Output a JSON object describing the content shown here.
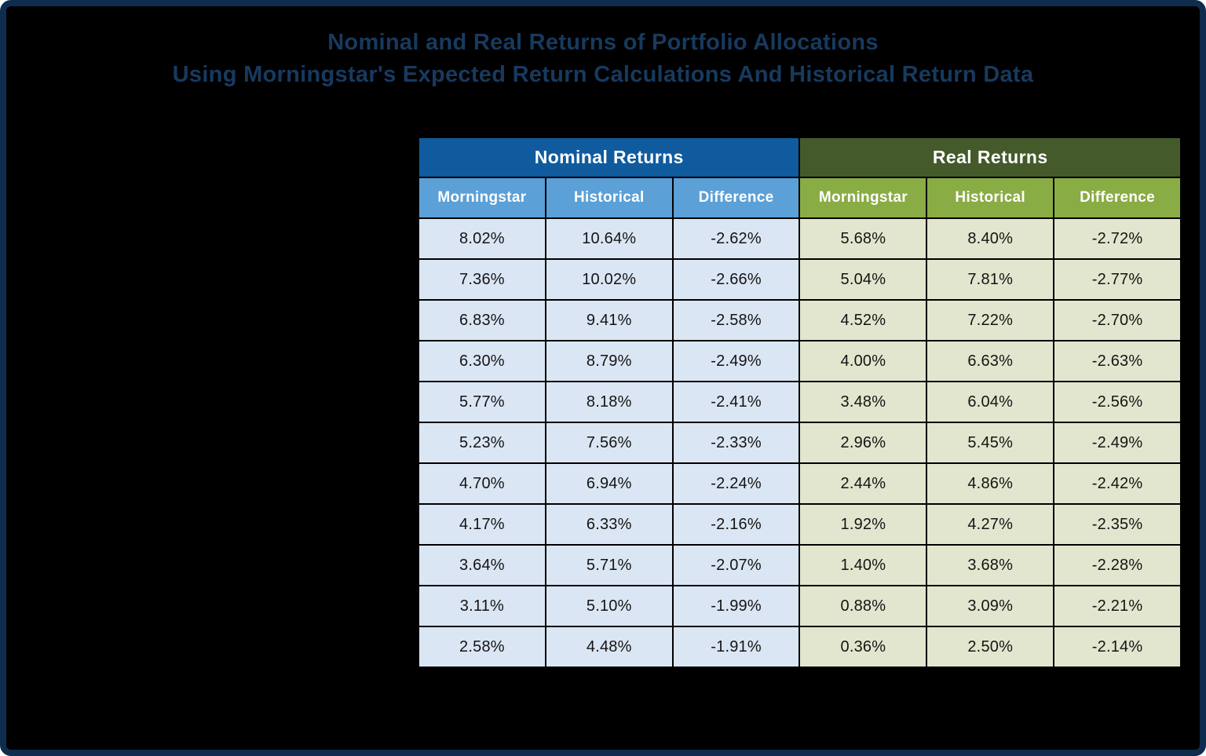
{
  "title": {
    "line1": "Nominal and Real Returns of Portfolio Allocations",
    "line2": "Using Morningstar's Expected Return Calculations And Historical Return Data"
  },
  "chart_data": {
    "type": "table",
    "title": "Nominal and Real Returns of Portfolio Allocations Using Morningstar's Expected Return Calculations And Historical Return Data",
    "column_groups": [
      {
        "label": "Nominal Returns",
        "columns": [
          "Morningstar",
          "Historical",
          "Difference"
        ]
      },
      {
        "label": "Real Returns",
        "columns": [
          "Morningstar",
          "Historical",
          "Difference"
        ]
      }
    ],
    "rows": [
      [
        "8.02%",
        "10.64%",
        "-2.62%",
        "5.68%",
        "8.40%",
        "-2.72%"
      ],
      [
        "7.36%",
        "10.02%",
        "-2.66%",
        "5.04%",
        "7.81%",
        "-2.77%"
      ],
      [
        "6.83%",
        "9.41%",
        "-2.58%",
        "4.52%",
        "7.22%",
        "-2.70%"
      ],
      [
        "6.30%",
        "8.79%",
        "-2.49%",
        "4.00%",
        "6.63%",
        "-2.63%"
      ],
      [
        "5.77%",
        "8.18%",
        "-2.41%",
        "3.48%",
        "6.04%",
        "-2.56%"
      ],
      [
        "5.23%",
        "7.56%",
        "-2.33%",
        "2.96%",
        "5.45%",
        "-2.49%"
      ],
      [
        "4.70%",
        "6.94%",
        "-2.24%",
        "2.44%",
        "4.86%",
        "-2.42%"
      ],
      [
        "4.17%",
        "6.33%",
        "-2.16%",
        "1.92%",
        "4.27%",
        "-2.35%"
      ],
      [
        "3.64%",
        "5.71%",
        "-2.07%",
        "1.40%",
        "3.68%",
        "-2.28%"
      ],
      [
        "3.11%",
        "5.10%",
        "-1.99%",
        "0.88%",
        "3.09%",
        "-2.21%"
      ],
      [
        "2.58%",
        "4.48%",
        "-1.91%",
        "0.36%",
        "2.50%",
        "-2.14%"
      ]
    ]
  },
  "colors": {
    "card_border": "#0E2C4E",
    "card_background": "#000000",
    "title_text": "#173A5F",
    "nominal_group_header_bg": "#0F5B9E",
    "real_group_header_bg": "#445A2B",
    "nominal_subheader_bg": "#5BA0D6",
    "real_subheader_bg": "#8AAC45",
    "nominal_cell_bg": "#DBE6F4",
    "real_cell_bg": "#E3E6CE",
    "header_text": "#FFFFFF",
    "cell_text": "#141414"
  }
}
